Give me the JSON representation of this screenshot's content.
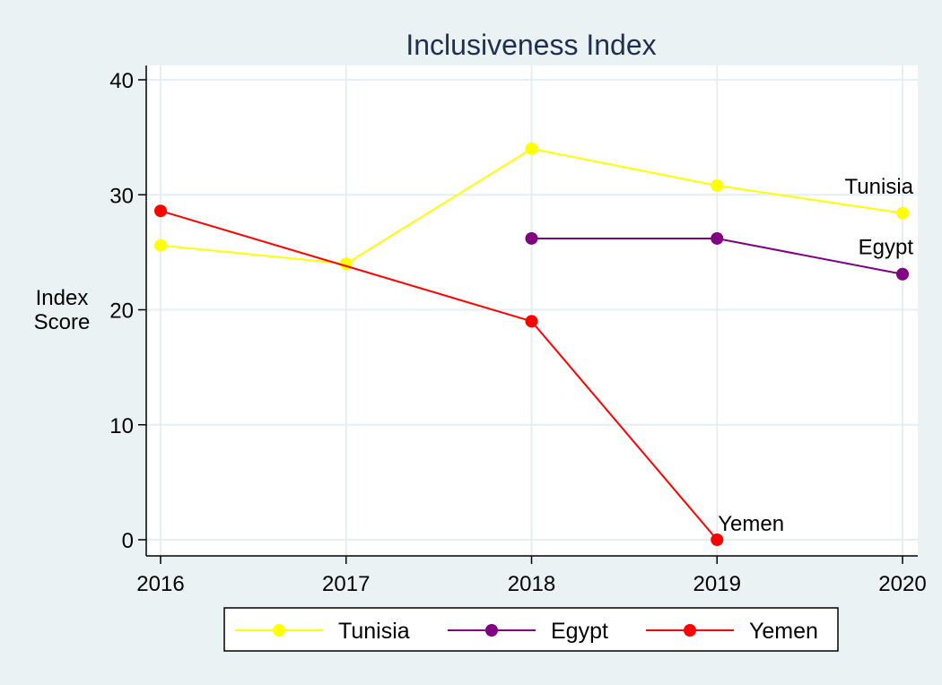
{
  "chart_data": {
    "type": "line",
    "title": "Inclusiveness Index",
    "xlabel": "",
    "ylabel_lines": [
      "Index",
      "Score"
    ],
    "x": [
      2016,
      2017,
      2018,
      2019,
      2020
    ],
    "x_tick_labels": [
      "2016",
      "2017",
      "2018",
      "2019",
      "2020"
    ],
    "xlim": [
      2016,
      2020
    ],
    "ylim": [
      0,
      40
    ],
    "y_ticks": [
      0,
      10,
      20,
      30,
      40
    ],
    "y_tick_labels": [
      "0",
      "10",
      "20",
      "30",
      "40"
    ],
    "grid": true,
    "legend_position": "bottom",
    "series": [
      {
        "name": "Tunisia",
        "color": "#ffff00",
        "values": [
          25.6,
          24.0,
          34.0,
          30.8,
          28.4
        ],
        "end_label": "Tunisia"
      },
      {
        "name": "Egypt",
        "color": "#800080",
        "values": [
          null,
          null,
          26.2,
          26.2,
          23.1
        ],
        "end_label": "Egypt"
      },
      {
        "name": "Yemen",
        "color": "#ff0000",
        "values": [
          28.6,
          null,
          19.0,
          0.0,
          null
        ],
        "end_label": "Yemen"
      }
    ]
  }
}
